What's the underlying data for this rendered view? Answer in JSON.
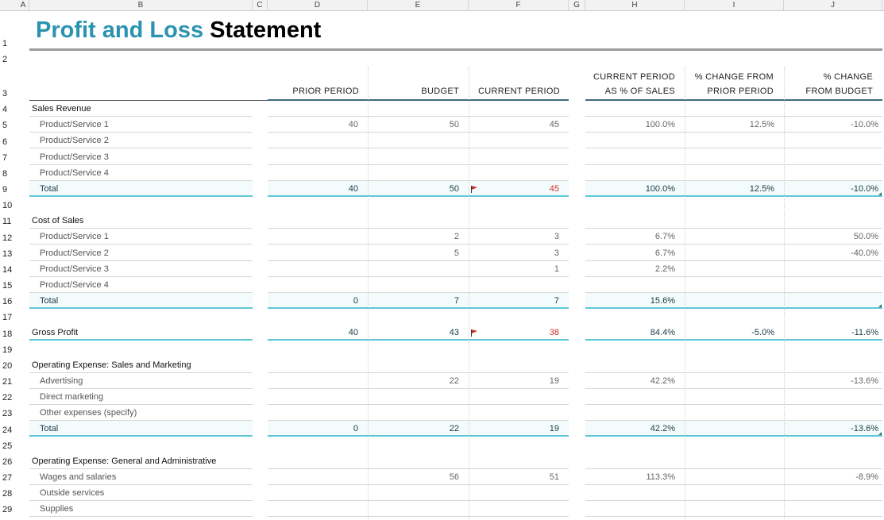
{
  "columns": [
    "A",
    "B",
    "C",
    "D",
    "E",
    "F",
    "G",
    "H",
    "I",
    "J"
  ],
  "rows": [
    "1",
    "2",
    "3",
    "4",
    "5",
    "6",
    "7",
    "8",
    "9",
    "10",
    "11",
    "12",
    "13",
    "14",
    "15",
    "16",
    "17",
    "18",
    "19",
    "20",
    "21",
    "22",
    "23",
    "24",
    "25",
    "26",
    "27",
    "28",
    "29"
  ],
  "title": {
    "part1": "Profit and Loss",
    "part2": "Statement"
  },
  "headers": {
    "prior": "PRIOR PERIOD",
    "budget": "BUDGET",
    "current": "CURRENT PERIOD",
    "pct_sales_1": "CURRENT PERIOD",
    "pct_sales_2": "AS % OF SALES",
    "chg_prior_1": "% CHANGE FROM",
    "chg_prior_2": "PRIOR PERIOD",
    "chg_budget_1": "% CHANGE",
    "chg_budget_2": "FROM BUDGET"
  },
  "lines": [
    {
      "row": 4,
      "kind": "section",
      "label": "Sales Revenue"
    },
    {
      "row": 5,
      "kind": "item",
      "label": "Product/Service 1",
      "prior": "40",
      "budget": "50",
      "current": "45",
      "pct": "100.0%",
      "chg_prior": "12.5%",
      "chg_budget": "-10.0%"
    },
    {
      "row": 6,
      "kind": "item",
      "label": "Product/Service 2"
    },
    {
      "row": 7,
      "kind": "item",
      "label": "Product/Service 3"
    },
    {
      "row": 8,
      "kind": "item",
      "label": "Product/Service 4"
    },
    {
      "row": 9,
      "kind": "total",
      "label": "Total",
      "prior": "40",
      "budget": "50",
      "current": "45",
      "flag": true,
      "pct": "100.0%",
      "chg_prior": "12.5%",
      "chg_budget": "-10.0%"
    },
    {
      "row": 11,
      "kind": "section",
      "label": "Cost of Sales"
    },
    {
      "row": 12,
      "kind": "item",
      "label": "Product/Service 1",
      "budget": "2",
      "current": "3",
      "pct": "6.7%",
      "chg_budget": "50.0%"
    },
    {
      "row": 13,
      "kind": "item",
      "label": "Product/Service 2",
      "budget": "5",
      "current": "3",
      "pct": "6.7%",
      "chg_budget": "-40.0%"
    },
    {
      "row": 14,
      "kind": "item",
      "label": "Product/Service 3",
      "current": "1",
      "pct": "2.2%"
    },
    {
      "row": 15,
      "kind": "item",
      "label": "Product/Service 4"
    },
    {
      "row": 16,
      "kind": "total",
      "label": "Total",
      "prior": "0",
      "budget": "7",
      "current": "7",
      "pct": "15.6%"
    },
    {
      "row": 18,
      "kind": "gross",
      "label": "Gross Profit",
      "prior": "40",
      "budget": "43",
      "current": "38",
      "flag": true,
      "pct": "84.4%",
      "chg_prior": "-5.0%",
      "chg_budget": "-11.6%"
    },
    {
      "row": 20,
      "kind": "section",
      "label": "Operating Expense: Sales and Marketing"
    },
    {
      "row": 21,
      "kind": "item",
      "label": "Advertising",
      "budget": "22",
      "current": "19",
      "pct": "42.2%",
      "chg_budget": "-13.6%"
    },
    {
      "row": 22,
      "kind": "item",
      "label": "Direct marketing"
    },
    {
      "row": 23,
      "kind": "item",
      "label": "Other expenses (specify)"
    },
    {
      "row": 24,
      "kind": "total",
      "label": "Total",
      "prior": "0",
      "budget": "22",
      "current": "19",
      "pct": "42.2%",
      "chg_budget": "-13.6%"
    },
    {
      "row": 26,
      "kind": "section",
      "label": "Operating Expense: General and Administrative"
    },
    {
      "row": 27,
      "kind": "item",
      "label": "Wages and salaries",
      "budget": "56",
      "current": "51",
      "pct": "113.3%",
      "chg_budget": "-8.9%"
    },
    {
      "row": 28,
      "kind": "item",
      "label": "Outside services"
    },
    {
      "row": 29,
      "kind": "item",
      "label": "Supplies"
    }
  ],
  "colors": {
    "title_accent": "#2a93b0",
    "total_line": "#5fc7d4",
    "warning_red": "#d0302b"
  },
  "icons": {
    "flag": "red-flag-icon"
  }
}
